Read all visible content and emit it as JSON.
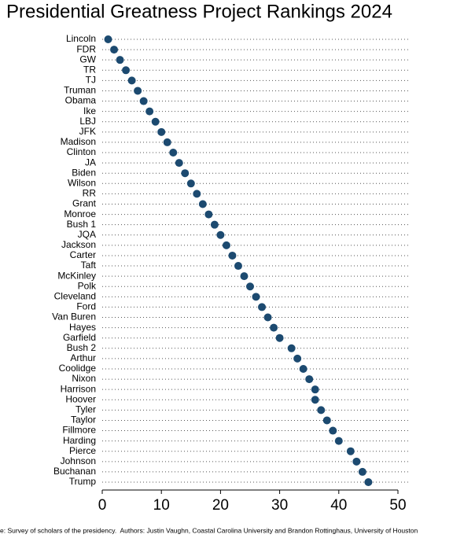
{
  "chart_data": {
    "type": "dot",
    "title": "Presidential Greatness Project Rankings 2024",
    "note": "e: Survey of scholars of the presidency.  Authors: Justin Vaughn, Coastal Carolina University and Brandon Rottinghaus, University of Houston",
    "categories": [
      "Lincoln",
      "FDR",
      "GW",
      "TR",
      "TJ",
      "Truman",
      "Obama",
      "Ike",
      "LBJ",
      "JFK",
      "Madison",
      "Clinton",
      "JA",
      "Biden",
      "Wilson",
      "RR",
      "Grant",
      "Monroe",
      "Bush 1",
      "JQA",
      "Jackson",
      "Carter",
      "Taft",
      "McKinley",
      "Polk",
      "Cleveland",
      "Ford",
      "Van Buren",
      "Hayes",
      "Garfield",
      "Bush 2",
      "Arthur",
      "Coolidge",
      "Nixon",
      "Harrison",
      "Hoover",
      "Tyler",
      "Taylor",
      "Fillmore",
      "Harding",
      "Pierce",
      "Johnson",
      "Buchanan",
      "Trump"
    ],
    "values": [
      1,
      2,
      3,
      4,
      5,
      6,
      7,
      8,
      9,
      10,
      11,
      12,
      13,
      14,
      15,
      16,
      17,
      18,
      19,
      20,
      21,
      22,
      23,
      24,
      25,
      26,
      27,
      28,
      29,
      30,
      32,
      33,
      34,
      35,
      36,
      36,
      37,
      38,
      39,
      40,
      42,
      43,
      44,
      45
    ],
    "color": "#1c4a70",
    "xlim": [
      0,
      50
    ],
    "xticks": [
      0,
      10,
      20,
      30,
      40,
      50
    ],
    "grid": true
  }
}
